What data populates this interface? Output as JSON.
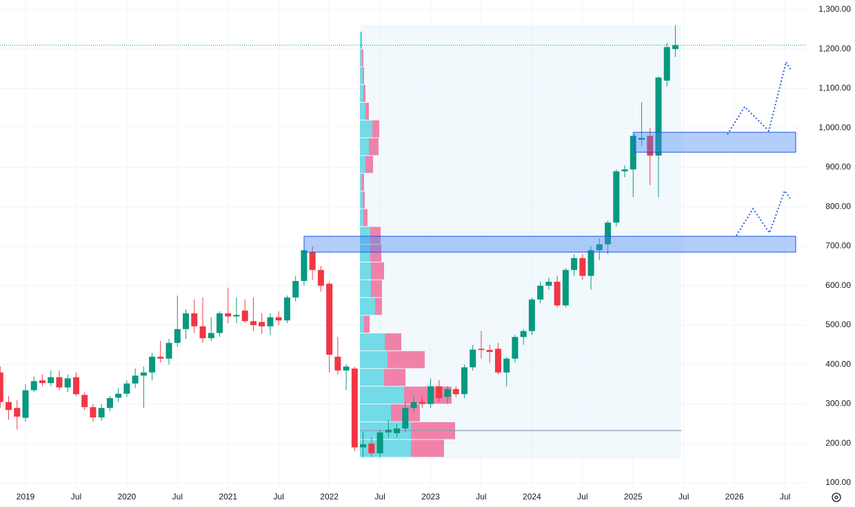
{
  "chart_data": {
    "type": "candlestick",
    "x": [
      "2018-10",
      "2018-11",
      "2018-12",
      "2019-01",
      "2019-02",
      "2019-03",
      "2019-04",
      "2019-05",
      "2019-06",
      "2019-07",
      "2019-08",
      "2019-09",
      "2019-10",
      "2019-11",
      "2019-12",
      "2020-01",
      "2020-02",
      "2020-03",
      "2020-04",
      "2020-05",
      "2020-06",
      "2020-07",
      "2020-08",
      "2020-09",
      "2020-10",
      "2020-11",
      "2020-12",
      "2021-01",
      "2021-02",
      "2021-03",
      "2021-04",
      "2021-05",
      "2021-06",
      "2021-07",
      "2021-08",
      "2021-09",
      "2021-10",
      "2021-11",
      "2021-12",
      "2022-01",
      "2022-02",
      "2022-03",
      "2022-04",
      "2022-05",
      "2022-06",
      "2022-07",
      "2022-08",
      "2022-09",
      "2022-10",
      "2022-11",
      "2022-12",
      "2023-01",
      "2023-02",
      "2023-03",
      "2023-04",
      "2023-05",
      "2023-06",
      "2023-07",
      "2023-08",
      "2023-09",
      "2023-10",
      "2023-11",
      "2023-12",
      "2024-01",
      "2024-02",
      "2024-03",
      "2024-04",
      "2024-05",
      "2024-06",
      "2024-07",
      "2024-08",
      "2024-09",
      "2024-10",
      "2024-11",
      "2024-12",
      "2025-01",
      "2025-02",
      "2025-03",
      "2025-04",
      "2025-05",
      "2025-06"
    ],
    "open": [
      380,
      305,
      290,
      265,
      335,
      360,
      353,
      368,
      342,
      368,
      323,
      292,
      266,
      290,
      316,
      326,
      352,
      372,
      380,
      420,
      415,
      455,
      490,
      530,
      497,
      467,
      480,
      530,
      522,
      537,
      510,
      508,
      497,
      520,
      512,
      570,
      612,
      685,
      640,
      605,
      420,
      385,
      390,
      190,
      200,
      175,
      228,
      226,
      238,
      290,
      305,
      300,
      345,
      318,
      338,
      325,
      393,
      440,
      437,
      440,
      380,
      415,
      470,
      485,
      565,
      600,
      610,
      550,
      640,
      670,
      625,
      690,
      705,
      760,
      890,
      895,
      970,
      980,
      930,
      1120,
      1200
    ],
    "high": [
      395,
      320,
      310,
      350,
      370,
      375,
      385,
      385,
      375,
      380,
      330,
      300,
      300,
      320,
      340,
      360,
      390,
      395,
      430,
      460,
      465,
      575,
      540,
      565,
      570,
      520,
      535,
      595,
      570,
      565,
      570,
      530,
      530,
      535,
      575,
      625,
      695,
      700,
      650,
      610,
      470,
      400,
      395,
      230,
      215,
      235,
      260,
      250,
      305,
      320,
      320,
      365,
      360,
      345,
      345,
      400,
      450,
      485,
      450,
      455,
      420,
      475,
      490,
      570,
      610,
      620,
      625,
      645,
      680,
      680,
      700,
      720,
      765,
      895,
      905,
      990,
      1065,
      1000,
      1130,
      1215,
      1260
    ],
    "low": [
      290,
      260,
      235,
      255,
      330,
      345,
      345,
      335,
      330,
      320,
      285,
      255,
      258,
      282,
      305,
      318,
      340,
      290,
      360,
      405,
      400,
      445,
      465,
      480,
      455,
      460,
      470,
      505,
      505,
      505,
      485,
      478,
      475,
      500,
      505,
      560,
      600,
      615,
      585,
      380,
      375,
      335,
      180,
      165,
      165,
      165,
      215,
      215,
      228,
      280,
      290,
      290,
      305,
      300,
      318,
      315,
      385,
      415,
      405,
      375,
      345,
      405,
      450,
      475,
      555,
      590,
      545,
      545,
      625,
      615,
      590,
      665,
      680,
      750,
      875,
      825,
      955,
      855,
      825,
      1105,
      1180
    ],
    "close": [
      305,
      285,
      268,
      335,
      358,
      353,
      368,
      342,
      365,
      325,
      292,
      266,
      290,
      315,
      326,
      352,
      372,
      380,
      420,
      415,
      455,
      490,
      530,
      497,
      467,
      480,
      530,
      522,
      526,
      510,
      500,
      497,
      520,
      512,
      570,
      612,
      690,
      640,
      600,
      425,
      385,
      395,
      190,
      198,
      175,
      228,
      235,
      238,
      290,
      305,
      300,
      345,
      315,
      338,
      325,
      393,
      438,
      437,
      432,
      380,
      415,
      470,
      485,
      565,
      600,
      610,
      550,
      640,
      670,
      625,
      690,
      705,
      760,
      890,
      895,
      980,
      975,
      930,
      1128,
      1205,
      1210
    ],
    "up_color": "#089981",
    "down_color": "#f23645",
    "volume_profile": {
      "levels": [
        165,
        210,
        255,
        300,
        345,
        390,
        435,
        480,
        525,
        570,
        615,
        660,
        705,
        750,
        795,
        840,
        885,
        930,
        975,
        1020,
        1065,
        1110,
        1155,
        1200,
        1245
      ],
      "up": [
        74,
        74,
        45,
        64,
        35,
        40,
        36,
        6,
        22,
        16,
        16,
        15,
        15,
        5,
        4,
        3,
        8,
        13,
        18,
        8,
        5,
        4,
        3,
        2
      ],
      "down": [
        48,
        64,
        42,
        69,
        31,
        54,
        24,
        8,
        10,
        16,
        19,
        16,
        15,
        6,
        3,
        3,
        11,
        14,
        10,
        5,
        3,
        2,
        2,
        1
      ],
      "up_color": "#5dd5e3",
      "down_color": "#f06d9a"
    },
    "ylim": [
      100,
      1300
    ],
    "yticks": [
      {
        "value": 1300,
        "label": "1,300.00"
      },
      {
        "value": 1200,
        "label": "1,200.00"
      },
      {
        "value": 1100,
        "label": "1,100.00"
      },
      {
        "value": 1000,
        "label": "1,000.00"
      },
      {
        "value": 900,
        "label": "900.00"
      },
      {
        "value": 800,
        "label": "800.00"
      },
      {
        "value": 700,
        "label": "700.00"
      },
      {
        "value": 600,
        "label": "600.00"
      },
      {
        "value": 500,
        "label": "500.00"
      },
      {
        "value": 400,
        "label": "400.00"
      },
      {
        "value": 300,
        "label": "300.00"
      },
      {
        "value": 200,
        "label": "200.00"
      },
      {
        "value": 100,
        "label": "100.00"
      }
    ],
    "xticks": [
      {
        "value": "2019-01",
        "label": "2019"
      },
      {
        "value": "2019-07",
        "label": "Jul"
      },
      {
        "value": "2020-01",
        "label": "2020"
      },
      {
        "value": "2020-07",
        "label": "Jul"
      },
      {
        "value": "2021-01",
        "label": "2021"
      },
      {
        "value": "2021-07",
        "label": "Jul"
      },
      {
        "value": "2022-01",
        "label": "2022"
      },
      {
        "value": "2022-07",
        "label": "Jul"
      },
      {
        "value": "2023-01",
        "label": "2023"
      },
      {
        "value": "2023-07",
        "label": "Jul"
      },
      {
        "value": "2024-01",
        "label": "2024"
      },
      {
        "value": "2024-07",
        "label": "Jul"
      },
      {
        "value": "2025-01",
        "label": "2025"
      },
      {
        "value": "2025-07",
        "label": "Jul"
      },
      {
        "value": "2026-01",
        "label": "2026"
      },
      {
        "value": "2026-07",
        "label": "Jul"
      }
    ],
    "grid": true
  }
}
